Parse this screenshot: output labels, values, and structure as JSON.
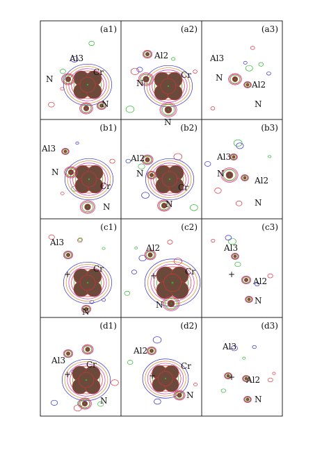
{
  "panels": [
    {
      "id": "a1",
      "label": "(a1)",
      "atoms": [
        {
          "name": "Al3",
          "text": "Al3"
        },
        {
          "name": "Cr",
          "text": "Cr"
        },
        {
          "name": "N-left",
          "text": "N"
        },
        {
          "name": "N-bottom",
          "text": "N"
        }
      ]
    },
    {
      "id": "a2",
      "label": "(a2)",
      "atoms": [
        {
          "name": "Al2",
          "text": "Al2"
        },
        {
          "name": "Cr",
          "text": "Cr"
        },
        {
          "name": "N-left",
          "text": "N"
        },
        {
          "name": "N-bottom",
          "text": "N"
        }
      ]
    },
    {
      "id": "a3",
      "label": "(a3)",
      "atoms": [
        {
          "name": "Al3",
          "text": "Al3"
        },
        {
          "name": "Al2",
          "text": "Al2"
        },
        {
          "name": "N-left",
          "text": "N"
        },
        {
          "name": "N-bottom",
          "text": "N"
        }
      ]
    },
    {
      "id": "b1",
      "label": "(b1)",
      "atoms": [
        {
          "name": "Al3",
          "text": "Al3"
        },
        {
          "name": "Cr",
          "text": "Cr"
        },
        {
          "name": "N-left",
          "text": "N"
        },
        {
          "name": "N-bottom",
          "text": "N"
        }
      ]
    },
    {
      "id": "b2",
      "label": "(b2)",
      "atoms": [
        {
          "name": "Al2",
          "text": "Al2"
        },
        {
          "name": "Cr",
          "text": "Cr"
        },
        {
          "name": "N-left",
          "text": "N"
        },
        {
          "name": "N-bottom",
          "text": "N"
        }
      ]
    },
    {
      "id": "b3",
      "label": "(b3)",
      "atoms": [
        {
          "name": "Al3",
          "text": "Al3"
        },
        {
          "name": "Al2",
          "text": "Al2"
        },
        {
          "name": "N-left",
          "text": "N"
        },
        {
          "name": "N-bottom",
          "text": "N"
        }
      ]
    },
    {
      "id": "c1",
      "label": "(c1)",
      "atoms": [
        {
          "name": "Al3",
          "text": "Al3"
        },
        {
          "name": "Cr",
          "text": "Cr"
        },
        {
          "name": "plus",
          "text": "+"
        },
        {
          "name": "N-bottom",
          "text": "N"
        }
      ]
    },
    {
      "id": "c2",
      "label": "(c2)",
      "atoms": [
        {
          "name": "Al2",
          "text": "Al2"
        },
        {
          "name": "Cr",
          "text": "Cr"
        },
        {
          "name": "plus",
          "text": "+"
        },
        {
          "name": "N-bottom",
          "text": "N"
        }
      ]
    },
    {
      "id": "c3",
      "label": "(c3)",
      "atoms": [
        {
          "name": "Al3",
          "text": "Al3"
        },
        {
          "name": "Al2",
          "text": "Al2"
        },
        {
          "name": "plus",
          "text": "+"
        },
        {
          "name": "N-bottom",
          "text": "N"
        }
      ]
    },
    {
      "id": "d1",
      "label": "(d1)",
      "atoms": [
        {
          "name": "Al3",
          "text": "Al3"
        },
        {
          "name": "Cr",
          "text": "Cr"
        },
        {
          "name": "plus",
          "text": "+"
        },
        {
          "name": "N-bottom",
          "text": "N"
        }
      ]
    },
    {
      "id": "d2",
      "label": "(d2)",
      "atoms": [
        {
          "name": "Al2",
          "text": "Al2"
        },
        {
          "name": "Cr",
          "text": "Cr"
        },
        {
          "name": "plus",
          "text": "+"
        },
        {
          "name": "N-bottom",
          "text": "N"
        }
      ]
    },
    {
      "id": "d3",
      "label": "(d3)",
      "atoms": [
        {
          "name": "Al3",
          "text": "Al3"
        },
        {
          "name": "Al2",
          "text": "Al2"
        },
        {
          "name": "plus",
          "text": "+"
        },
        {
          "name": "N-bottom",
          "text": "N"
        }
      ]
    }
  ],
  "colors": {
    "frame": "#222222",
    "core_fill": "#6b4a3c",
    "contour_green": "#2bb52b",
    "contour_red": "#e0303a",
    "contour_blue": "#2d2dd6",
    "contour_magenta": "#c03aa0",
    "contour_orange": "#e08a1a"
  }
}
